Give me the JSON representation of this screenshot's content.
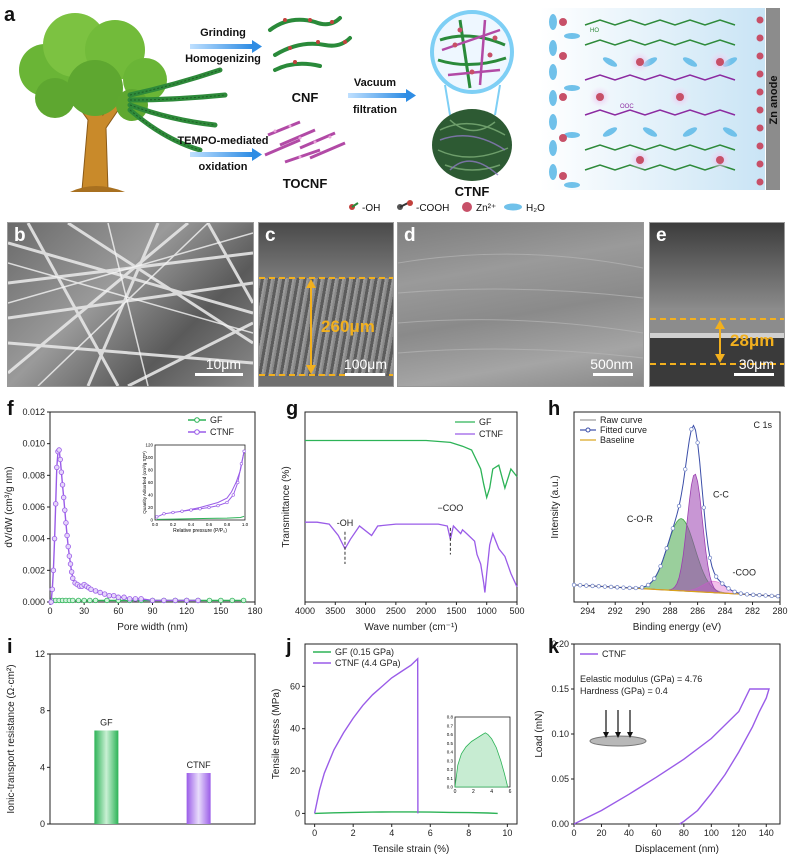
{
  "panel_letters": {
    "a": "a",
    "b": "b",
    "c": "c",
    "d": "d",
    "e": "e",
    "f": "f",
    "g": "g",
    "h": "h",
    "i": "i",
    "j": "j",
    "k": "k"
  },
  "scheme": {
    "arrow1": [
      "Grinding",
      "Homogenizing"
    ],
    "arrow2": [
      "TEMPO-mediated",
      "oxidation"
    ],
    "arrow3": [
      "Vacuum",
      "filtration"
    ],
    "cnf": "CNF",
    "tocnf": "TOCNF",
    "ctnf": "CTNF",
    "anode": "Zn anode",
    "legend": [
      "-OH",
      "-COOH",
      "Zn²⁺",
      "H₂O"
    ],
    "coo_label": "OOC",
    "ho_label": "HO"
  },
  "sem": {
    "b": {
      "scale": "10μm"
    },
    "c": {
      "scale": "100μm",
      "thickness": "260μm"
    },
    "d": {
      "scale": "500nm"
    },
    "e": {
      "scale": "30μm",
      "thickness": "28μm"
    }
  },
  "colors": {
    "gf": "#2db357",
    "ctnf": "#9a5ce8",
    "fit": "#3b4ea8",
    "baseline": "#d9a21a",
    "coor": "#47a84a",
    "cc": "#9b3fb0",
    "coo": "#e88ad9",
    "meas": "#f2b01e"
  },
  "chart_data": [
    {
      "id": "f",
      "type": "scatter",
      "xlabel": "Pore width (nm)",
      "ylabel": "dV/dW (cm³/g nm)",
      "xlim": [
        0,
        180
      ],
      "ylim": [
        0,
        0.012
      ],
      "xticks": [
        0,
        30,
        60,
        90,
        120,
        150,
        180
      ],
      "yticks": [
        0.0,
        0.002,
        0.004,
        0.006,
        0.008,
        0.01,
        0.012
      ],
      "ytick_labels": [
        "0.000",
        "0.002",
        "0.004",
        "0.006",
        "0.008",
        "0.010",
        "0.012"
      ],
      "series": [
        {
          "name": "GF",
          "x": [
            2,
            5,
            8,
            11,
            14,
            17,
            20,
            25,
            30,
            35,
            40,
            50,
            60,
            70,
            80,
            90,
            100,
            110,
            120,
            130,
            140,
            150,
            160,
            170
          ],
          "y": [
            0.0001,
            0.0001,
            0.0001,
            0.0001,
            0.0001,
            0.0001,
            0.0001,
            0.0001,
            0.0001,
            0.0001,
            0.0001,
            0.0001,
            0.0001,
            0.0001,
            0.0001,
            0.0001,
            0.0001,
            0.0001,
            0.0001,
            0.0001,
            0.0001,
            0.0001,
            0.0001,
            0.0001
          ]
        },
        {
          "name": "CTNF",
          "x": [
            1,
            2,
            3,
            4,
            5,
            6,
            7,
            8,
            9,
            10,
            11,
            12,
            13,
            14,
            15,
            16,
            17,
            18,
            19,
            20,
            22,
            24,
            26,
            28,
            30,
            32,
            34,
            36,
            40,
            44,
            48,
            52,
            56,
            60,
            65,
            70,
            75,
            80,
            90,
            100,
            110,
            120,
            130
          ],
          "y": [
            0.0,
            0.0008,
            0.002,
            0.004,
            0.0062,
            0.0085,
            0.0095,
            0.0096,
            0.009,
            0.0082,
            0.0074,
            0.0066,
            0.0058,
            0.005,
            0.0042,
            0.0035,
            0.0029,
            0.0024,
            0.0019,
            0.0015,
            0.0012,
            0.0011,
            0.001,
            0.001,
            0.0011,
            0.001,
            0.0009,
            0.0008,
            0.0007,
            0.0006,
            0.0005,
            0.0004,
            0.0004,
            0.0003,
            0.0003,
            0.0002,
            0.0002,
            0.0002,
            0.0001,
            0.0001,
            0.0001,
            0.0001,
            0.0001
          ]
        }
      ],
      "legend": "top-right",
      "inset": {
        "xlabel": "Relative pressure (P/P₀)",
        "ylabel": "Quantity Adsorbed (cm³/g STP)",
        "xticks": [
          0.0,
          0.2,
          0.4,
          0.6,
          0.8,
          1.0
        ],
        "yticks": [
          0,
          20,
          40,
          60,
          80,
          100,
          120
        ]
      }
    },
    {
      "id": "g",
      "type": "line",
      "xlabel": "Wave number (cm⁻¹)",
      "ylabel": "Transmittance (%)",
      "xlim": [
        4000,
        500
      ],
      "xticks": [
        4000,
        3500,
        3000,
        2500,
        2000,
        1500,
        1000,
        500
      ],
      "series": [
        {
          "name": "GF",
          "x": [
            4000,
            3500,
            3000,
            2500,
            2000,
            1600,
            1400,
            1250,
            1100,
            1050,
            1000,
            950,
            900,
            800,
            700,
            600,
            500
          ],
          "y": [
            0.85,
            0.85,
            0.85,
            0.85,
            0.85,
            0.84,
            0.82,
            0.8,
            0.7,
            0.62,
            0.55,
            0.6,
            0.7,
            0.72,
            0.6,
            0.7,
            0.66
          ]
        },
        {
          "name": "CTNF",
          "x": [
            4000,
            3800,
            3600,
            3450,
            3340,
            3250,
            3100,
            2900,
            2800,
            2500,
            2000,
            1800,
            1650,
            1600,
            1550,
            1430,
            1400,
            1330,
            1200,
            1160,
            1100,
            1050,
            1030,
            1000,
            950,
            900,
            800,
            700,
            600,
            500
          ],
          "y": [
            0.42,
            0.42,
            0.41,
            0.35,
            0.28,
            0.33,
            0.4,
            0.35,
            0.4,
            0.41,
            0.41,
            0.41,
            0.4,
            0.33,
            0.4,
            0.36,
            0.38,
            0.36,
            0.32,
            0.25,
            0.2,
            0.1,
            0.05,
            0.15,
            0.3,
            0.36,
            0.28,
            0.24,
            0.15,
            0.08
          ]
        }
      ],
      "annotations": [
        "-OH",
        "−COO"
      ],
      "legend": "top-right"
    },
    {
      "id": "h",
      "type": "line",
      "title": "C 1s",
      "xlabel": "Binding energy (eV)",
      "ylabel": "Intensity (a.u.)",
      "xlim": [
        295,
        280
      ],
      "xticks": [
        294,
        292,
        290,
        288,
        286,
        284,
        282,
        280
      ],
      "series": [
        {
          "name": "Raw curve"
        },
        {
          "name": "Fitted curve"
        },
        {
          "name": "Baseline"
        }
      ],
      "peaks": [
        {
          "name": "C-O-R",
          "center": 287.2
        },
        {
          "name": "C-C",
          "center": 286.2
        },
        {
          "name": "-COO",
          "center": 284.8
        }
      ],
      "legend": "top-left"
    },
    {
      "id": "i",
      "type": "bar",
      "ylabel": "Ionic-transport resistance (Ω·cm²)",
      "categories": [
        "GF",
        "CTNF"
      ],
      "values": [
        6.6,
        3.6
      ],
      "ylim": [
        0,
        12
      ],
      "yticks": [
        0,
        4,
        8,
        12
      ]
    },
    {
      "id": "j",
      "type": "line",
      "xlabel": "Tensile strain (%)",
      "ylabel": "Tensile stress (MPa)",
      "xlim": [
        -0.5,
        10.5
      ],
      "ylim": [
        -5,
        80
      ],
      "xticks": [
        0,
        2,
        4,
        6,
        8,
        10
      ],
      "yticks": [
        0,
        20,
        40,
        60
      ],
      "series": [
        {
          "name": "GF (0.15 GPa)",
          "x": [
            0,
            1,
            2,
            3,
            4,
            5,
            6,
            7,
            8,
            9,
            9.5
          ],
          "y": [
            0,
            0.3,
            0.5,
            0.6,
            0.7,
            0.7,
            0.6,
            0.5,
            0.4,
            0.2,
            0
          ]
        },
        {
          "name": "CTNF (4.4 GPa)",
          "x": [
            0,
            0.25,
            0.5,
            1,
            1.5,
            2,
            2.5,
            3,
            3.5,
            4,
            4.5,
            5,
            5.35,
            5.36
          ],
          "y": [
            0,
            11,
            19,
            30,
            38,
            45,
            51,
            56,
            60,
            64,
            67,
            70,
            73,
            0
          ]
        }
      ],
      "legend": "top-left",
      "inset": {
        "xticks": [
          0,
          2,
          4,
          6
        ],
        "yticks": [
          0.0,
          0.1,
          0.2,
          0.3,
          0.4,
          0.5,
          0.6,
          0.7,
          0.8
        ]
      }
    },
    {
      "id": "k",
      "type": "line",
      "xlabel": "Displacement (nm)",
      "ylabel": "Load (mN)",
      "xlim": [
        0,
        150
      ],
      "ylim": [
        0,
        0.2
      ],
      "xticks": [
        0,
        20,
        40,
        60,
        80,
        100,
        120,
        140
      ],
      "yticks": [
        0.0,
        0.05,
        0.1,
        0.15,
        0.2
      ],
      "ytick_labels": [
        "0.00",
        "0.05",
        "0.10",
        "0.15",
        "0.20"
      ],
      "series": [
        {
          "name": "CTNF",
          "x": [
            0,
            20,
            40,
            60,
            80,
            100,
            120,
            128,
            135,
            140,
            142,
            140,
            135,
            130,
            120,
            110,
            100,
            90,
            80,
            77
          ],
          "y": [
            0,
            0.015,
            0.033,
            0.052,
            0.072,
            0.095,
            0.125,
            0.15,
            0.15,
            0.15,
            0.15,
            0.14,
            0.125,
            0.108,
            0.08,
            0.055,
            0.034,
            0.015,
            0.003,
            0
          ]
        }
      ],
      "annotations": [
        "Eelastic modulus (GPa) = 4.76",
        "Hardness (GPa) = 0.4"
      ],
      "legend": "top-left"
    }
  ]
}
